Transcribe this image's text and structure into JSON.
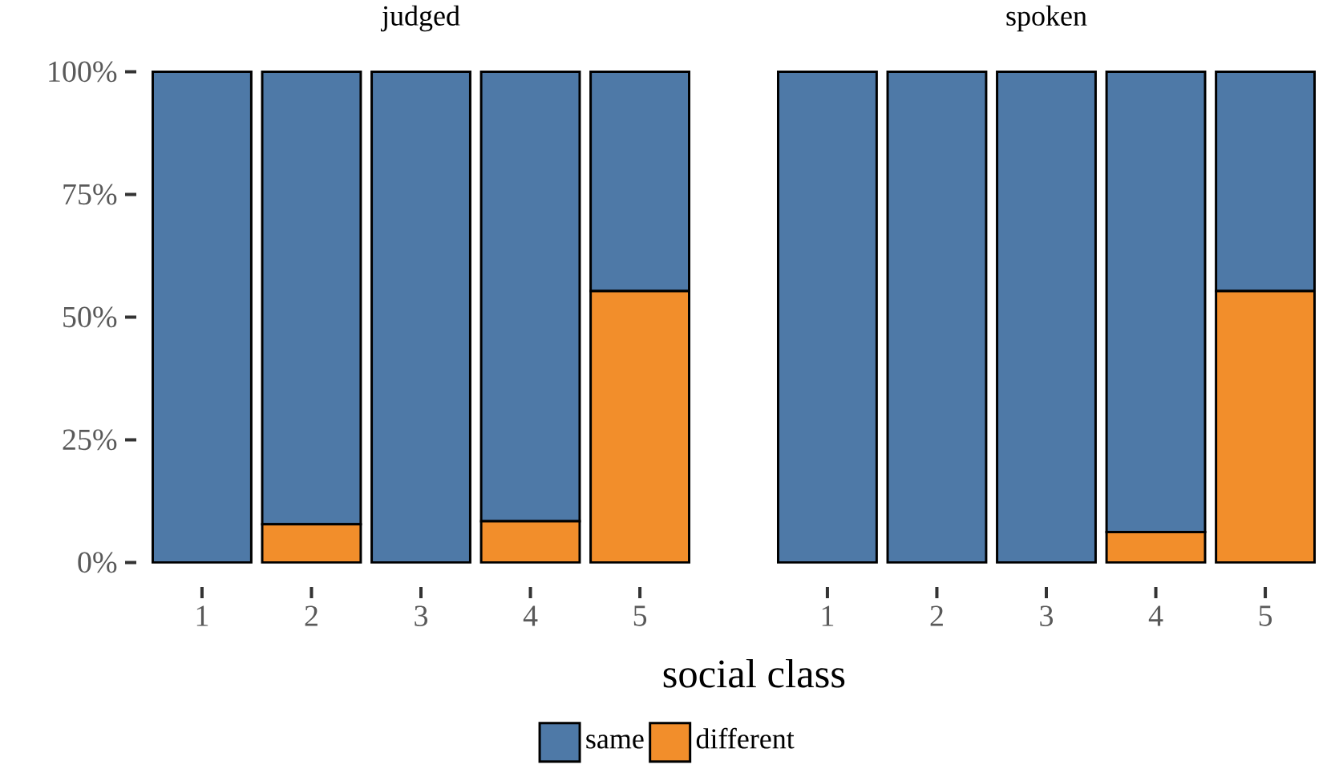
{
  "chart_data": [
    {
      "type": "bar",
      "title": "judged",
      "xlabel": "social class",
      "stacked": true,
      "categories": [
        "1",
        "2",
        "3",
        "4",
        "5"
      ],
      "ylim": [
        0,
        100
      ],
      "yticks": [
        {
          "value": 0,
          "label": "0%"
        },
        {
          "value": 25,
          "label": "25%"
        },
        {
          "value": 50,
          "label": "50%"
        },
        {
          "value": 75,
          "label": "75%"
        },
        {
          "value": 100,
          "label": "100%"
        }
      ],
      "legend": "bottom",
      "series": [
        {
          "name": "different",
          "color": "#f28e2b",
          "values": [
            0,
            7.8,
            0,
            8.4,
            55.3
          ]
        },
        {
          "name": "same",
          "color": "#4e79a7",
          "values": [
            100,
            92.2,
            100,
            91.6,
            44.7
          ]
        }
      ]
    },
    {
      "type": "bar",
      "title": "spoken",
      "stacked": true,
      "categories": [
        "1",
        "2",
        "3",
        "4",
        "5"
      ],
      "ylim": [
        0,
        100
      ],
      "tick_labels": "x",
      "series": [
        {
          "color": "#f28e2b",
          "values": [
            0,
            0,
            0,
            6.2,
            55.3
          ]
        },
        {
          "color": "#4e79a7",
          "values": [
            100,
            100,
            100,
            93.8,
            44.7
          ]
        }
      ]
    }
  ]
}
